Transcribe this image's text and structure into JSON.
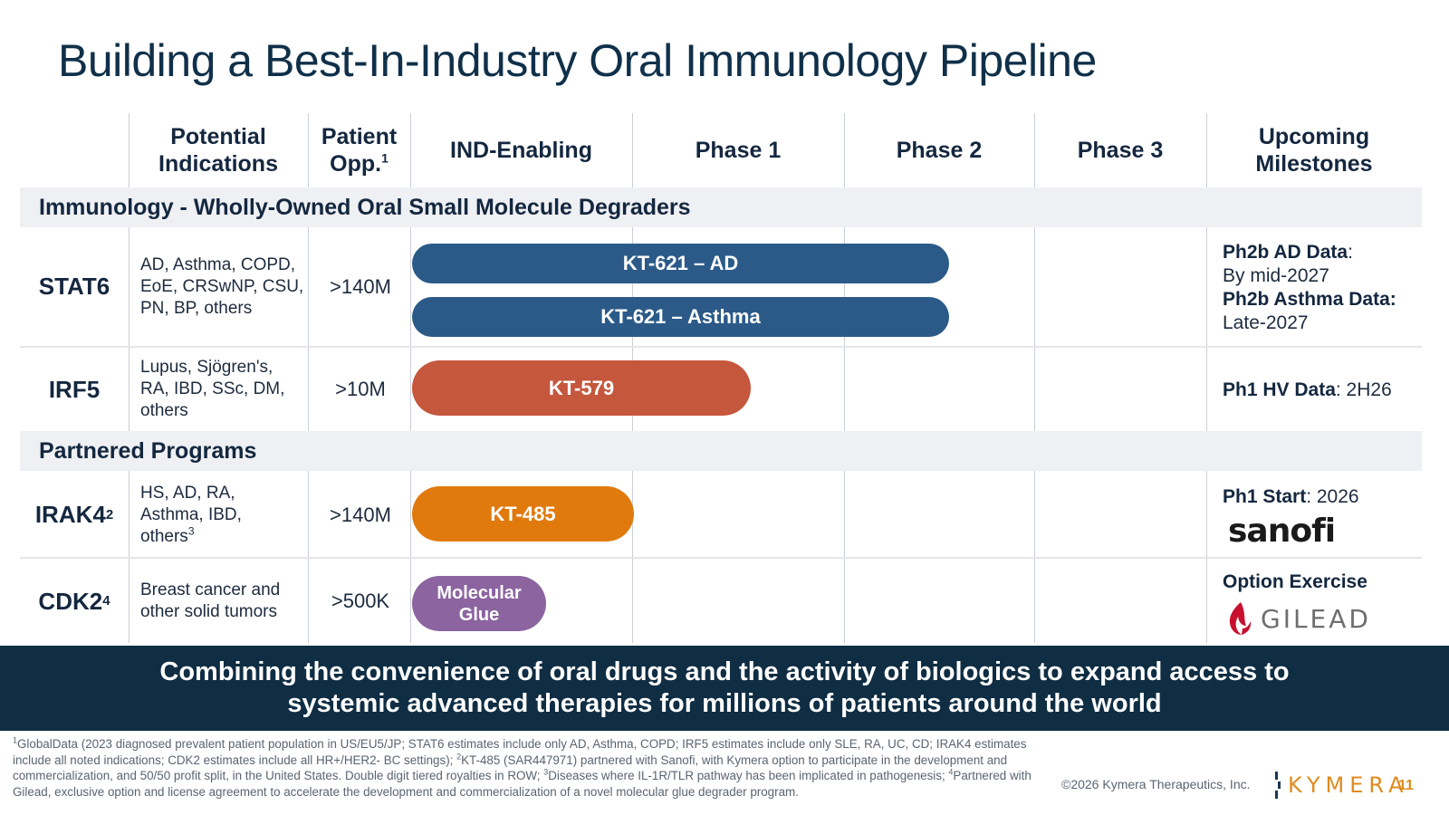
{
  "title": "Building a Best-In-Industry Oral Immunology Pipeline",
  "headers": {
    "indications_line1": "Potential",
    "indications_line2": "Indications",
    "patient_line1": "Patient",
    "patient_line2": "Opp.",
    "patient_sup": "1",
    "ind": "IND-Enabling",
    "phase1": "Phase 1",
    "phase2": "Phase 2",
    "phase3": "Phase 3",
    "milestones_line1": "Upcoming",
    "milestones_line2": "Milestones"
  },
  "sections": {
    "immunology": "Immunology - Wholly-Owned Oral Small Molecule Degraders",
    "partnered": "Partnered Programs"
  },
  "rows": {
    "stat6": {
      "target": "STAT6",
      "indications": [
        "AD, Asthma, COPD,",
        "EoE, CRSwNP, CSU,",
        "PN, BP, others"
      ],
      "opp": ">140M",
      "bars": [
        {
          "label": "KT-621 – AD",
          "stage": "Phase 2",
          "progress": 0.8
        },
        {
          "label": "KT-621 – Asthma",
          "stage": "Phase 2",
          "progress": 0.8
        }
      ],
      "ms1_label": "Ph2b AD Data",
      "ms1_value": "By mid-2027",
      "ms2_label": "Ph2b Asthma Data:",
      "ms2_value": "Late-2027"
    },
    "irf5": {
      "target": "IRF5",
      "indications": [
        "Lupus, Sjögren's,",
        "RA, IBD, SSc, DM,",
        "others"
      ],
      "opp": ">10M",
      "bar": {
        "label": "KT-579",
        "stage": "Phase 1",
        "progress": 0.55
      },
      "ms_label": "Ph1 HV Data",
      "ms_value": ": 2H26"
    },
    "irak4": {
      "target": "IRAK4",
      "target_sup": "2",
      "indications": [
        "HS, AD, RA,",
        "Asthma, IBD,",
        "others"
      ],
      "indications_sup": "3",
      "opp": ">140M",
      "bar": {
        "label": "KT-485",
        "stage": "IND-Enabling",
        "progress": 1.0
      },
      "ms_label": "Ph1 Start",
      "ms_value": ": 2026",
      "partner_logo": "sanofi",
      "partner_logo_dot": "i"
    },
    "cdk2": {
      "target": "CDK2",
      "target_sup": "4",
      "indications": [
        "Breast cancer and",
        "other solid tumors"
      ],
      "opp": ">500K",
      "bar": {
        "label_line1": "Molecular",
        "label_line2": "Glue",
        "stage": "IND-Enabling",
        "progress": 0.6
      },
      "ms_label": "Option Exercise",
      "partner_logo": "GILEAD"
    }
  },
  "banner": {
    "line1": "Combining the convenience of oral drugs and the activity of biologics to expand access to",
    "line2": "systemic advanced therapies for millions of patients around the world"
  },
  "footnote": {
    "s1": "1",
    "t1": "GlobalData (2023 diagnosed prevalent patient population in US/EU5/JP; STAT6 estimates include only AD, Asthma, COPD; IRF5 estimates include only SLE, RA, UC, CD; IRAK4 estimates include all noted indications; CDK2 estimates include all HR+/HER2- BC settings); ",
    "s2": "2",
    "t2": "KT-485 (SAR447971) partnered with Sanofi, with Kymera option to participate in the development and commercialization, and 50/50 profit split, in the United States. Double digit tiered royalties in ROW; ",
    "s3": "3",
    "t3": "Diseases where IL-1R/TLR pathway has been implicated in pathogenesis; ",
    "s4": "4",
    "t4": "Partnered with Gilead, exclusive option and license agreement to accelerate the development and commercialization of a novel molecular glue degrader program."
  },
  "copyright": "©2026 Kymera Therapeutics, Inc.",
  "brand": "KYMERA",
  "page_number": "11",
  "colors": {
    "title": "#10304a",
    "bar_blue": "#2b5a88",
    "bar_red": "#c5573d",
    "bar_orange": "#e07a0d",
    "bar_purple": "#8b64a0",
    "banner": "#0f2d43",
    "brand_orange": "#e08b1e",
    "section_band": "#eef0f3"
  }
}
